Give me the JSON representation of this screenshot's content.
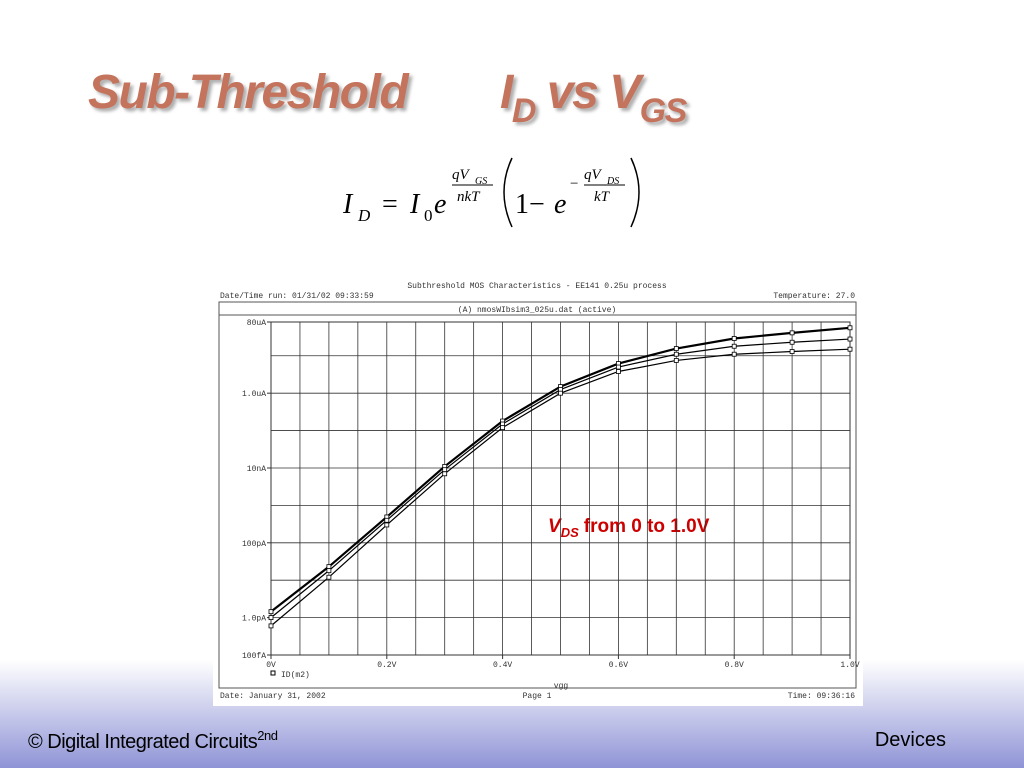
{
  "slide": {
    "title": {
      "part1": "Sub-Threshold",
      "i": "I",
      "i_sub": "D",
      "vs": "vs V",
      "v_sub": "GS"
    },
    "equation": {
      "lhs": "I",
      "lhs_sub": "D",
      "eq": "=",
      "i0": "I",
      "i0_sub": "0",
      "e": "e",
      "num1": "qV",
      "num1_sub": "GS",
      "den1": "nkT",
      "one_minus": "1−",
      "e2": "e",
      "neg": "−",
      "num2": "qV",
      "num2_sub": "DS",
      "den2": "kT"
    },
    "footer": {
      "left": "© Digital Integrated Circuits",
      "left_sup": "2nd",
      "right": "Devices"
    }
  },
  "chart_data": {
    "type": "line",
    "title": "Subthreshold MOS Characteristics - EE141 0.25u process",
    "run_info": "Date/Time run: 01/31/02 09:33:59",
    "temperature": "Temperature: 27.0",
    "subtitle": "(A) nmosWIbsim3_025u.dat (active)",
    "x_label": "vgg",
    "footer_date": "Date: January 31, 2002",
    "footer_page": "Page 1",
    "footer_time": "Time: 09:36:16",
    "annotation": {
      "symbol": "V",
      "subscript": "DS",
      "text": "from 0 to 1.0V",
      "color": "#cc0000"
    },
    "x": [
      0,
      0.1,
      0.2,
      0.3,
      0.4,
      0.5,
      0.6,
      0.7,
      0.8,
      0.9,
      1.0
    ],
    "series": [
      {
        "name": "ID(m2)",
        "color": "#000000",
        "values": [
          1.44e-12,
          2.3e-11,
          4.9e-10,
          1.1e-08,
          1.8e-07,
          1.5e-06,
          6.2e-06,
          1.56e-05,
          2.9e-05,
          4.1e-05,
          5.6e-05
        ]
      },
      {
        "color": "#000000",
        "values": [
          1e-12,
          1.8e-11,
          4e-10,
          9e-09,
          1.5e-07,
          1.25e-06,
          5e-06,
          1.1e-05,
          1.8e-05,
          2.3e-05,
          2.8e-05
        ]
      },
      {
        "color": "#000000",
        "values": [
          6e-13,
          1.2e-11,
          3e-10,
          7e-09,
          1.2e-07,
          1e-06,
          3.8e-06,
          7.5e-06,
          1.1e-05,
          1.3e-05,
          1.5e-05
        ]
      }
    ],
    "xlim": [
      0,
      1.0
    ],
    "ylim": [
      1e-13,
      8e-05
    ],
    "yscale": "log",
    "xticks": [
      {
        "value": 0,
        "label": "0V"
      },
      {
        "value": 0.2,
        "label": "0.2V"
      },
      {
        "value": 0.4,
        "label": "0.4V"
      },
      {
        "value": 0.6,
        "label": "0.6V"
      },
      {
        "value": 0.8,
        "label": "0.8V"
      },
      {
        "value": 1.0,
        "label": "1.0V"
      }
    ],
    "yticks": [
      {
        "value": 8e-05,
        "label": "80uA"
      },
      {
        "value": 1e-06,
        "label": "1.0uA"
      },
      {
        "value": 1e-08,
        "label": "10nA"
      },
      {
        "value": 1e-10,
        "label": "100pA"
      },
      {
        "value": 1e-12,
        "label": "1.0pA"
      },
      {
        "value": 1e-13,
        "label": "100fA"
      }
    ],
    "x_grid": [
      0.05,
      0.1,
      0.15,
      0.2,
      0.25,
      0.3,
      0.35,
      0.4,
      0.45,
      0.5,
      0.55,
      0.6,
      0.65,
      0.7,
      0.75,
      0.8,
      0.85,
      0.9,
      0.95
    ],
    "y_grid": [
      1e-05,
      1e-06,
      1e-07,
      1e-08,
      1e-09,
      1e-10,
      1e-11,
      1e-12
    ],
    "grid": true,
    "markers": "square"
  }
}
